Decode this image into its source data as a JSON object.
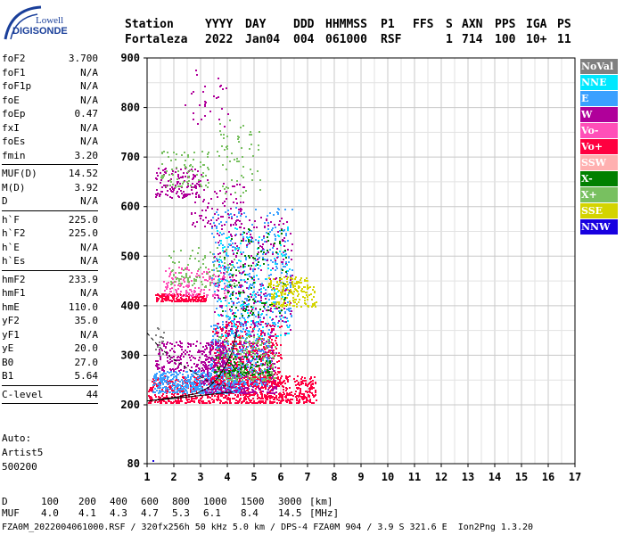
{
  "logo": {
    "line1": "Lowell",
    "line2": "DIGISONDE"
  },
  "header": {
    "labels": [
      "Station",
      "YYYY",
      "DAY",
      "DDD",
      "HHMMSS",
      "P1",
      "FFS",
      "S",
      "AXN",
      "PPS",
      "IGA",
      "PS"
    ],
    "values": [
      "Fortaleza",
      "2022",
      "Jan04",
      "004",
      "061000",
      "RSF",
      "",
      "1",
      "714",
      "100",
      "10+",
      "11"
    ]
  },
  "params": [
    {
      "name": "foF2",
      "value": "3.700"
    },
    {
      "name": "foF1",
      "value": "N/A"
    },
    {
      "name": "foF1p",
      "value": "N/A"
    },
    {
      "name": "foE",
      "value": "N/A"
    },
    {
      "name": "foEp",
      "value": "0.47"
    },
    {
      "name": "fxI",
      "value": "N/A"
    },
    {
      "name": "foEs",
      "value": "N/A"
    },
    {
      "name": "fmin",
      "value": "3.20"
    },
    {
      "sep": true
    },
    {
      "name": "MUF(D)",
      "value": "14.52"
    },
    {
      "name": "M(D)",
      "value": "3.92"
    },
    {
      "name": "D",
      "value": "N/A"
    },
    {
      "sep": true
    },
    {
      "name": "h`F",
      "value": "225.0"
    },
    {
      "name": "h`F2",
      "value": "225.0"
    },
    {
      "name": "h`E",
      "value": "N/A"
    },
    {
      "name": "h`Es",
      "value": "N/A"
    },
    {
      "sep": true
    },
    {
      "name": "hmF2",
      "value": "233.9"
    },
    {
      "name": "hmF1",
      "value": "N/A"
    },
    {
      "name": "hmE",
      "value": "110.0"
    },
    {
      "name": "yF2",
      "value": "35.0"
    },
    {
      "name": "yF1",
      "value": "N/A"
    },
    {
      "name": "yE",
      "value": "20.0"
    },
    {
      "name": "B0",
      "value": "27.0"
    },
    {
      "name": "B1",
      "value": "5.64"
    },
    {
      "sep": true
    },
    {
      "name": "C-level",
      "value": "44"
    },
    {
      "sep": true
    }
  ],
  "auto": {
    "l1": "Auto:",
    "l2": "Artist5",
    "l3": "500200"
  },
  "legend": [
    {
      "label": "NoVal",
      "color": "#808080"
    },
    {
      "label": "NNE",
      "color": "#00e8ff"
    },
    {
      "label": "E",
      "color": "#3aa0ff"
    },
    {
      "label": "W",
      "color": "#b0009a"
    },
    {
      "label": "Vo-",
      "color": "#ff4fb8"
    },
    {
      "label": "Vo+",
      "color": "#ff0040"
    },
    {
      "label": "SSW",
      "color": "#ffb0b0"
    },
    {
      "label": "X-",
      "color": "#008000"
    },
    {
      "label": "X+",
      "color": "#78c060"
    },
    {
      "label": "SSE",
      "color": "#d4d400"
    },
    {
      "label": "NNW",
      "color": "#1800e0"
    }
  ],
  "footer": {
    "d_label": "D",
    "d_values": [
      "100",
      "200",
      "400",
      "600",
      "800",
      "1000",
      "1500",
      "3000",
      "[km]"
    ],
    "muf_label": "MUF",
    "muf_values": [
      "4.0",
      "4.1",
      "4.3",
      "4.7",
      "5.3",
      "6.1",
      "8.4",
      "14.5",
      "[MHz]"
    ]
  },
  "credit": {
    "left": "FZA0M_2022004061000.RSF / 320fx256h 50 kHz 5.0 km / DPS-4 FZA0M 904 / 3.9 S 321.6 E",
    "right": "Ion2Png 1.3.20"
  },
  "chart_data": {
    "type": "scatter",
    "x": [
      1,
      17
    ],
    "xticks": [
      "1",
      "2",
      "3",
      "4",
      "5",
      "6",
      "7",
      "8",
      "9",
      "10",
      "11",
      "12",
      "13",
      "14",
      "15",
      "16",
      "17"
    ],
    "ylim": [
      80,
      900
    ],
    "yticks": [
      "80",
      "200",
      "300",
      "400",
      "500",
      "600",
      "700",
      "800",
      "900"
    ],
    "grid": true,
    "clusters": [
      {
        "f0": 1.0,
        "f1": 7.3,
        "h0": 205,
        "h1": 260,
        "color": "#ff0040",
        "n": 900
      },
      {
        "f0": 1.2,
        "f1": 4.5,
        "h0": 225,
        "h1": 270,
        "color": "#3aa0ff",
        "n": 450
      },
      {
        "f0": 3.0,
        "f1": 5.8,
        "h0": 225,
        "h1": 330,
        "color": "#b0009a",
        "n": 500
      },
      {
        "f0": 3.4,
        "f1": 6.0,
        "h0": 240,
        "h1": 370,
        "color": "#ff0040",
        "n": 400
      },
      {
        "f0": 3.3,
        "f1": 5.6,
        "h0": 240,
        "h1": 360,
        "color": "#3aa0ff",
        "n": 250
      },
      {
        "f0": 3.6,
        "f1": 5.8,
        "h0": 250,
        "h1": 340,
        "color": "#78c060",
        "n": 180
      },
      {
        "f0": 3.5,
        "f1": 5.6,
        "h0": 260,
        "h1": 300,
        "color": "#008000",
        "n": 100
      },
      {
        "f0": 1.3,
        "f1": 4.0,
        "h0": 270,
        "h1": 330,
        "color": "#b0009a",
        "n": 220
      },
      {
        "f0": 1.3,
        "f1": 3.2,
        "h0": 410,
        "h1": 425,
        "color": "#ff0040",
        "n": 160
      },
      {
        "f0": 1.6,
        "f1": 4.2,
        "h0": 420,
        "h1": 480,
        "color": "#ff4fb8",
        "n": 160
      },
      {
        "f0": 1.8,
        "f1": 4.4,
        "h0": 440,
        "h1": 520,
        "color": "#78c060",
        "n": 120
      },
      {
        "f0": 3.4,
        "f1": 6.4,
        "h0": 360,
        "h1": 600,
        "color": "#3aa0ff",
        "n": 360
      },
      {
        "f0": 3.5,
        "f1": 6.4,
        "h0": 340,
        "h1": 580,
        "color": "#b0009a",
        "n": 300
      },
      {
        "f0": 3.6,
        "f1": 6.3,
        "h0": 340,
        "h1": 560,
        "color": "#00e8ff",
        "n": 160
      },
      {
        "f0": 3.8,
        "f1": 6.2,
        "h0": 380,
        "h1": 560,
        "color": "#008000",
        "n": 100
      },
      {
        "f0": 5.6,
        "f1": 7.3,
        "h0": 400,
        "h1": 440,
        "color": "#d4d400",
        "n": 120
      },
      {
        "f0": 5.5,
        "f1": 7.0,
        "h0": 440,
        "h1": 460,
        "color": "#d4d400",
        "n": 60
      },
      {
        "f0": 1.3,
        "f1": 3.0,
        "h0": 620,
        "h1": 680,
        "color": "#b0009a",
        "n": 120
      },
      {
        "f0": 1.5,
        "f1": 3.3,
        "h0": 640,
        "h1": 720,
        "color": "#78c060",
        "n": 80
      },
      {
        "f0": 2.6,
        "f1": 4.6,
        "h0": 560,
        "h1": 660,
        "color": "#b0009a",
        "n": 90
      },
      {
        "f0": 3.6,
        "f1": 5.2,
        "h0": 620,
        "h1": 780,
        "color": "#78c060",
        "n": 60
      },
      {
        "f0": 2.4,
        "f1": 4.0,
        "h0": 760,
        "h1": 880,
        "color": "#b0009a",
        "n": 30
      },
      {
        "f0": 1.3,
        "f1": 1.6,
        "h0": 300,
        "h1": 360,
        "color": "#808080",
        "n": 18
      },
      {
        "f0": 1.0,
        "f1": 1.3,
        "h0": 80,
        "h1": 90,
        "color": "#1800e0",
        "n": 4
      }
    ],
    "curves": [
      {
        "name": "profile",
        "style": "solid",
        "points": [
          [
            1.05,
            208
          ],
          [
            2.0,
            215
          ],
          [
            2.8,
            222
          ],
          [
            3.3,
            235
          ],
          [
            3.7,
            258
          ],
          [
            4.0,
            285
          ],
          [
            4.2,
            310
          ],
          [
            4.35,
            350
          ]
        ]
      },
      {
        "name": "mufcurve",
        "style": "dashed",
        "points": [
          [
            1.0,
            345
          ],
          [
            1.4,
            320
          ],
          [
            1.9,
            295
          ],
          [
            2.6,
            270
          ],
          [
            3.2,
            250
          ],
          [
            3.7,
            240
          ],
          [
            4.1,
            236
          ]
        ]
      },
      {
        "name": "lower",
        "style": "solid",
        "points": [
          [
            1.0,
            208
          ],
          [
            2.2,
            214
          ],
          [
            3.2,
            220
          ],
          [
            4.2,
            226
          ]
        ]
      }
    ]
  }
}
